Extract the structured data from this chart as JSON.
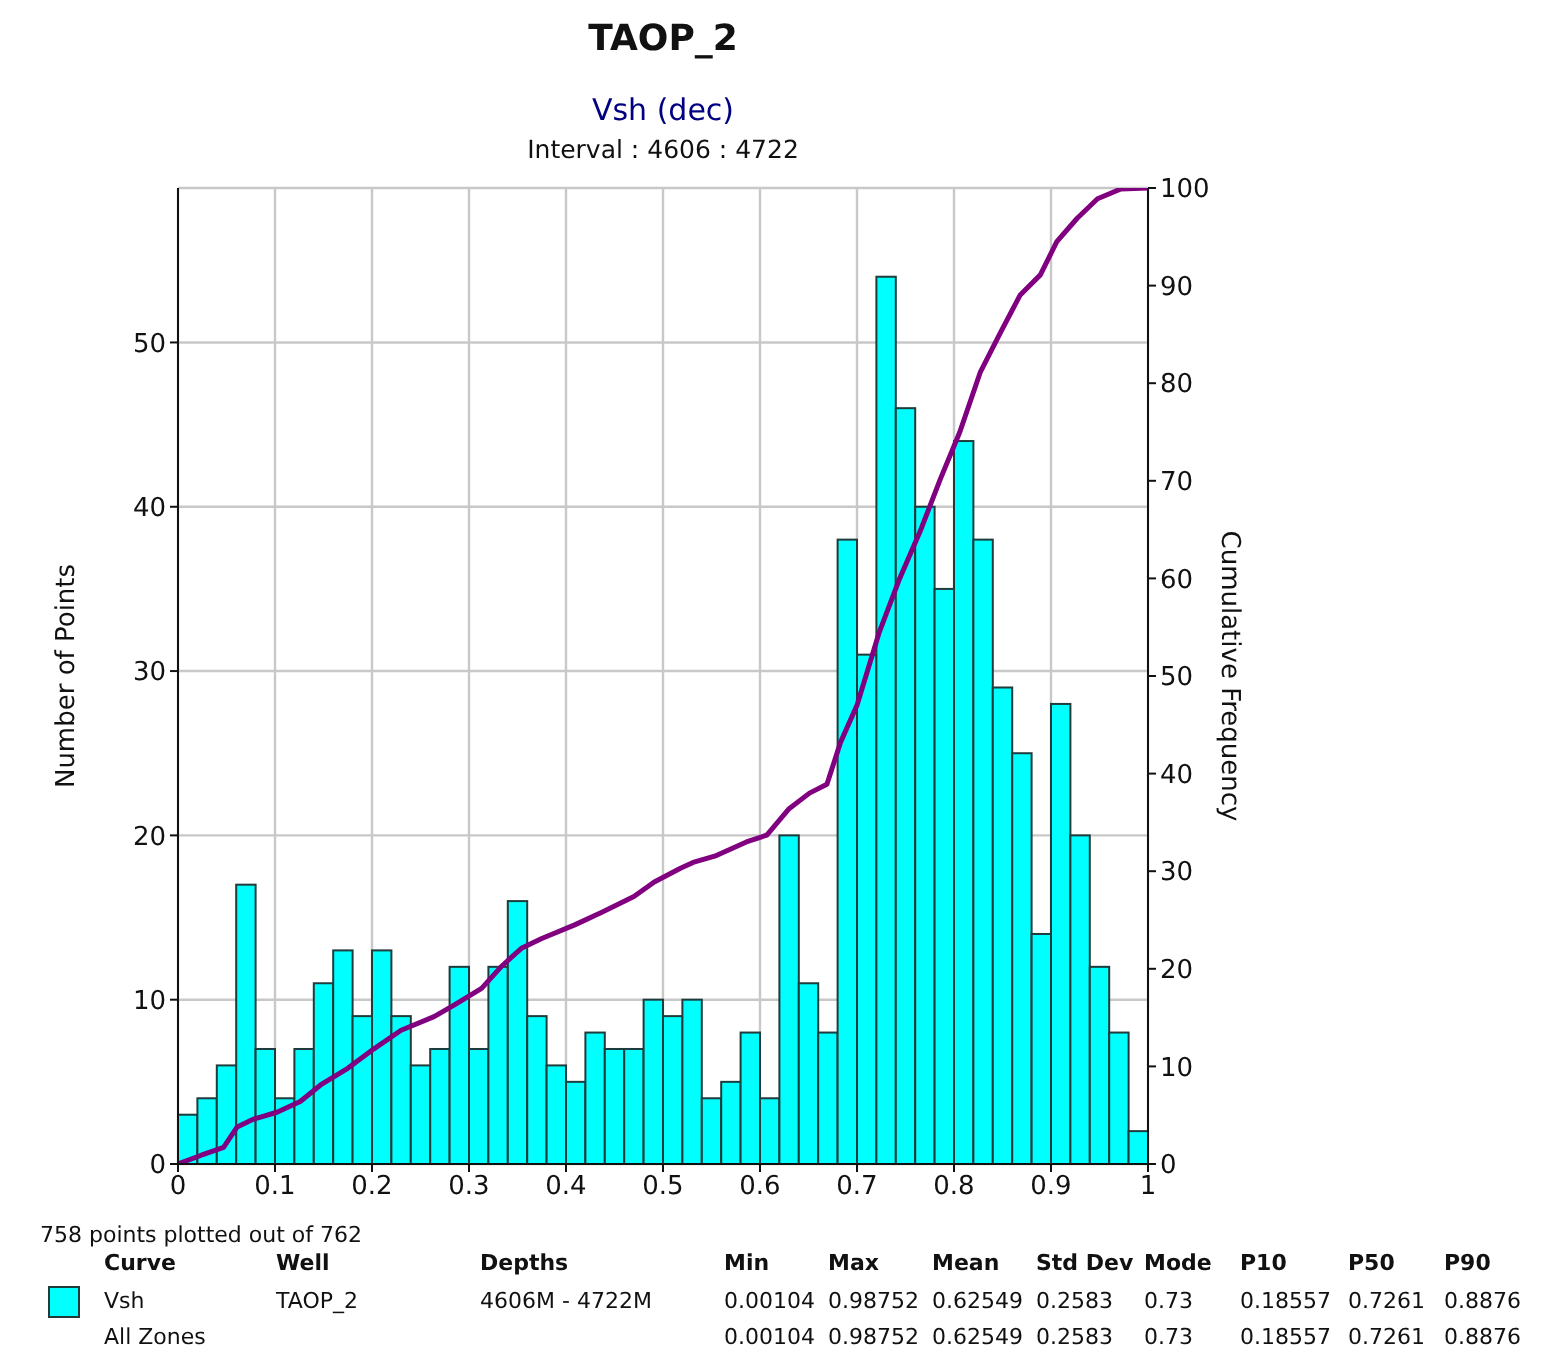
{
  "chart_data": {
    "type": "histogram",
    "title": "TAOP_2",
    "subtitle": "Vsh (dec)",
    "ylabel": "Number of Points",
    "y2label": "Cumulative Frequency",
    "bins": [
      0,
      0.02,
      0.04,
      0.06,
      0.08,
      0.1,
      0.12,
      0.14,
      0.16,
      0.18,
      0.2,
      0.22,
      0.24,
      0.26,
      0.28,
      0.3,
      0.32,
      0.34,
      0.36,
      0.38,
      0.4,
      0.42,
      0.44,
      0.46,
      0.48,
      0.5,
      0.52,
      0.54,
      0.56,
      0.58,
      0.6,
      0.62,
      0.64,
      0.66,
      0.68,
      0.7,
      0.72,
      0.74,
      0.76,
      0.78,
      0.8,
      0.82,
      0.84,
      0.86,
      0.88,
      0.9,
      0.92,
      0.94,
      0.96,
      0.98,
      1
    ],
    "series": [
      {
        "name": "Vsh",
        "color": "#00ffff",
        "values": [
          3,
          4,
          6,
          17,
          7,
          4,
          7,
          11,
          13,
          9,
          13,
          9,
          6,
          7,
          12,
          7,
          12,
          16,
          9,
          6,
          5,
          8,
          7,
          7,
          10,
          9,
          10,
          4,
          5,
          8,
          4,
          20,
          11,
          8,
          38,
          31,
          54,
          46,
          40,
          35,
          44,
          38,
          29,
          25,
          14,
          28,
          20,
          12,
          8,
          2
        ]
      },
      {
        "type": "line",
        "axis": "y2",
        "color": "#800080",
        "x": [
          0,
          0.024,
          0.047,
          0.061,
          0.078,
          0.102,
          0.126,
          0.147,
          0.175,
          0.202,
          0.23,
          0.264,
          0.285,
          0.313,
          0.333,
          0.354,
          0.375,
          0.409,
          0.437,
          0.47,
          0.491,
          0.518,
          0.531,
          0.555,
          0.586,
          0.607,
          0.63,
          0.651,
          0.669,
          0.683,
          0.7,
          0.723,
          0.744,
          0.765,
          0.786,
          0.806,
          0.827,
          0.848,
          0.868,
          0.889,
          0.906,
          0.927,
          0.948,
          0.972,
          1
        ],
        "values": [
          0,
          0.9,
          1.7,
          3.8,
          4.6,
          5.3,
          6.4,
          8.1,
          9.8,
          11.8,
          13.7,
          15.1,
          16.3,
          18,
          20.2,
          22.1,
          23.1,
          24.5,
          25.8,
          27.4,
          28.9,
          30.3,
          30.9,
          31.6,
          33,
          33.7,
          36.4,
          38,
          38.9,
          43.2,
          47,
          54.5,
          60,
          64.8,
          70.2,
          75,
          81.1,
          85.2,
          89,
          91.1,
          94.5,
          96.9,
          98.9,
          99.9,
          100
        ]
      }
    ],
    "xlim": [
      0,
      1
    ],
    "xticks": [
      0,
      0.1,
      0.2,
      0.3,
      0.4,
      0.5,
      0.6,
      0.7,
      0.8,
      0.9,
      1
    ],
    "ylim": [
      0,
      59.4
    ],
    "yticks": [
      0,
      10,
      20,
      30,
      40,
      50
    ],
    "y2lim": [
      0,
      100
    ],
    "y2ticks": [
      0,
      10,
      20,
      30,
      40,
      50,
      60,
      70,
      80,
      90,
      100
    ],
    "grid": true,
    "legend": "bottom",
    "annotations": [
      "Interval : 4606 : 4722",
      "758 points plotted out of 762",
      "Curve\tWell\tDepths\tMin\tMax\tMean\tStd Dev\tMode\tP10\tP50\tP90",
      "TAOP_2\t4606M - 4722M\t0.00104\t0.98752\t0.62549\t0.2583\t0.73\t0.18557\t0.7261\t0.8876",
      "All Zones\t\t\t0.00104\t0.98752\t0.62549\t0.2583\t0.73\t0.18557\t0.7261\t0.8876"
    ]
  }
}
